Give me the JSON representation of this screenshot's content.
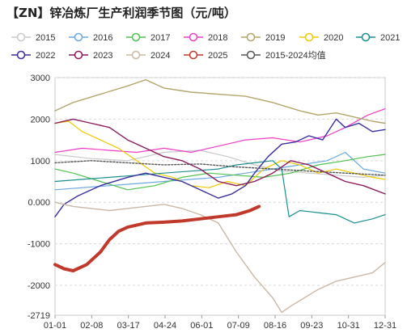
{
  "chart_data": {
    "type": "line",
    "title": "【ZN】锌冶炼厂生产利润季节图（元/吨）",
    "xlabel": "",
    "ylabel": "",
    "x_ticks": [
      "01-01",
      "02-08",
      "03-17",
      "04-24",
      "06-01",
      "07-09",
      "08-16",
      "09-23",
      "10-31",
      "12-31"
    ],
    "y_ticks": [
      3000,
      2000,
      1000,
      0,
      -1000,
      -2000,
      -2719
    ],
    "y_tick_labels": [
      "3000",
      "2000",
      "1000",
      "0.000",
      "-1000",
      "-2000",
      "-2719"
    ],
    "ylim": [
      -2719,
      3000
    ],
    "grid": true,
    "legend_position": "top",
    "series": [
      {
        "name": "2015",
        "color": "#c8c8c8",
        "dash": false,
        "width": 1.2,
        "points": [
          [
            0,
            1150
          ],
          [
            40,
            1050
          ],
          [
            80,
            1000
          ],
          [
            120,
            1200
          ],
          [
            160,
            1250
          ],
          [
            190,
            1100
          ],
          [
            220,
            900
          ],
          [
            250,
            750
          ],
          [
            280,
            700
          ],
          [
            310,
            650
          ],
          [
            340,
            600
          ],
          [
            364,
            650
          ]
        ]
      },
      {
        "name": "2016",
        "color": "#6aa9e0",
        "dash": false,
        "width": 1.2,
        "points": [
          [
            0,
            300
          ],
          [
            30,
            350
          ],
          [
            60,
            400
          ],
          [
            90,
            450
          ],
          [
            120,
            500
          ],
          [
            150,
            550
          ],
          [
            180,
            600
          ],
          [
            210,
            700
          ],
          [
            240,
            800
          ],
          [
            270,
            900
          ],
          [
            300,
            1000
          ],
          [
            320,
            1200
          ],
          [
            340,
            800
          ],
          [
            364,
            700
          ]
        ]
      },
      {
        "name": "2017",
        "color": "#4fc24f",
        "dash": false,
        "width": 1.2,
        "points": [
          [
            0,
            800
          ],
          [
            20,
            700
          ],
          [
            50,
            500
          ],
          [
            80,
            300
          ],
          [
            110,
            400
          ],
          [
            140,
            600
          ],
          [
            170,
            700
          ],
          [
            200,
            650
          ],
          [
            230,
            600
          ],
          [
            260,
            700
          ],
          [
            290,
            900
          ],
          [
            320,
            1000
          ],
          [
            345,
            1100
          ],
          [
            364,
            1150
          ]
        ]
      },
      {
        "name": "2018",
        "color": "#f03cc8",
        "dash": false,
        "width": 1.2,
        "points": [
          [
            0,
            1200
          ],
          [
            30,
            1300
          ],
          [
            60,
            1250
          ],
          [
            90,
            1200
          ],
          [
            120,
            1300
          ],
          [
            150,
            1200
          ],
          [
            180,
            1350
          ],
          [
            210,
            1500
          ],
          [
            240,
            1550
          ],
          [
            270,
            1450
          ],
          [
            300,
            1600
          ],
          [
            320,
            1800
          ],
          [
            345,
            2100
          ],
          [
            364,
            2250
          ]
        ]
      },
      {
        "name": "2019",
        "color": "#b3a56b",
        "dash": false,
        "width": 1.4,
        "points": [
          [
            0,
            2200
          ],
          [
            20,
            2400
          ],
          [
            50,
            2600
          ],
          [
            80,
            2800
          ],
          [
            100,
            2950
          ],
          [
            120,
            2750
          ],
          [
            150,
            2650
          ],
          [
            180,
            2600
          ],
          [
            210,
            2550
          ],
          [
            240,
            2400
          ],
          [
            270,
            2200
          ],
          [
            290,
            2100
          ],
          [
            310,
            2150
          ],
          [
            330,
            2050
          ],
          [
            350,
            1950
          ],
          [
            364,
            1900
          ]
        ]
      },
      {
        "name": "2020",
        "color": "#f0c800",
        "dash": false,
        "width": 1.2,
        "points": [
          [
            0,
            1900
          ],
          [
            15,
            1950
          ],
          [
            30,
            1700
          ],
          [
            50,
            1500
          ],
          [
            70,
            1300
          ],
          [
            90,
            1000
          ],
          [
            110,
            700
          ],
          [
            130,
            600
          ],
          [
            150,
            400
          ],
          [
            170,
            350
          ],
          [
            190,
            500
          ],
          [
            210,
            400
          ],
          [
            230,
            800
          ],
          [
            250,
            1000
          ],
          [
            270,
            900
          ],
          [
            290,
            700
          ],
          [
            310,
            800
          ],
          [
            330,
            700
          ],
          [
            350,
            600
          ],
          [
            364,
            550
          ]
        ]
      },
      {
        "name": "2021",
        "color": "#1a8f8f",
        "dash": false,
        "width": 1.2,
        "points": [
          [
            0,
            500
          ],
          [
            30,
            550
          ],
          [
            60,
            600
          ],
          [
            90,
            650
          ],
          [
            120,
            700
          ],
          [
            150,
            750
          ],
          [
            180,
            800
          ],
          [
            200,
            900
          ],
          [
            220,
            950
          ],
          [
            240,
            1000
          ],
          [
            250,
            800
          ],
          [
            258,
            -350
          ],
          [
            270,
            -200
          ],
          [
            290,
            -250
          ],
          [
            310,
            -300
          ],
          [
            330,
            -500
          ],
          [
            350,
            -400
          ],
          [
            364,
            -300
          ]
        ]
      },
      {
        "name": "2022",
        "color": "#3a2f9e",
        "dash": false,
        "width": 1.4,
        "points": [
          [
            0,
            -350
          ],
          [
            10,
            -50
          ],
          [
            25,
            150
          ],
          [
            50,
            400
          ],
          [
            80,
            600
          ],
          [
            100,
            700
          ],
          [
            120,
            600
          ],
          [
            140,
            500
          ],
          [
            160,
            300
          ],
          [
            180,
            100
          ],
          [
            195,
            200
          ],
          [
            210,
            400
          ],
          [
            220,
            700
          ],
          [
            235,
            1100
          ],
          [
            250,
            1400
          ],
          [
            265,
            1450
          ],
          [
            280,
            1600
          ],
          [
            295,
            1500
          ],
          [
            310,
            2000
          ],
          [
            320,
            1800
          ],
          [
            335,
            1900
          ],
          [
            350,
            1700
          ],
          [
            364,
            1750
          ]
        ]
      },
      {
        "name": "2023",
        "color": "#8b1a5a",
        "dash": false,
        "width": 1.4,
        "points": [
          [
            0,
            1900
          ],
          [
            20,
            2000
          ],
          [
            40,
            1900
          ],
          [
            60,
            1800
          ],
          [
            80,
            1500
          ],
          [
            100,
            1300
          ],
          [
            120,
            1100
          ],
          [
            140,
            1000
          ],
          [
            160,
            800
          ],
          [
            180,
            500
          ],
          [
            200,
            400
          ],
          [
            220,
            500
          ],
          [
            240,
            700
          ],
          [
            260,
            1000
          ],
          [
            280,
            900
          ],
          [
            300,
            700
          ],
          [
            320,
            500
          ],
          [
            340,
            400
          ],
          [
            364,
            200
          ]
        ]
      },
      {
        "name": "2024",
        "color": "#c9b8a3",
        "dash": false,
        "width": 1.4,
        "points": [
          [
            0,
            0
          ],
          [
            20,
            -100
          ],
          [
            40,
            -150
          ],
          [
            60,
            -200
          ],
          [
            80,
            -150
          ],
          [
            100,
            -100
          ],
          [
            120,
            -50
          ],
          [
            140,
            -150
          ],
          [
            160,
            -300
          ],
          [
            180,
            -500
          ],
          [
            200,
            -1200
          ],
          [
            220,
            -1800
          ],
          [
            240,
            -2300
          ],
          [
            250,
            -2650
          ],
          [
            260,
            -2500
          ],
          [
            275,
            -2300
          ],
          [
            290,
            -2100
          ],
          [
            310,
            -1900
          ],
          [
            330,
            -1800
          ],
          [
            350,
            -1700
          ],
          [
            364,
            -1450
          ]
        ]
      },
      {
        "name": "2025",
        "color": "#c0392b",
        "dash": false,
        "width": 4,
        "points": [
          [
            0,
            -1500
          ],
          [
            10,
            -1600
          ],
          [
            20,
            -1650
          ],
          [
            35,
            -1500
          ],
          [
            50,
            -1200
          ],
          [
            60,
            -900
          ],
          [
            70,
            -700
          ],
          [
            80,
            -600
          ],
          [
            100,
            -500
          ],
          [
            120,
            -480
          ],
          [
            140,
            -450
          ],
          [
            160,
            -400
          ],
          [
            180,
            -350
          ],
          [
            200,
            -300
          ],
          [
            215,
            -200
          ],
          [
            225,
            -100
          ]
        ]
      },
      {
        "name": "2015-2024均值",
        "color": "#555555",
        "dash": true,
        "width": 1.4,
        "points": [
          [
            0,
            950
          ],
          [
            40,
            1000
          ],
          [
            80,
            950
          ],
          [
            120,
            900
          ],
          [
            160,
            920
          ],
          [
            200,
            850
          ],
          [
            240,
            800
          ],
          [
            280,
            750
          ],
          [
            320,
            700
          ],
          [
            364,
            650
          ]
        ]
      }
    ]
  }
}
